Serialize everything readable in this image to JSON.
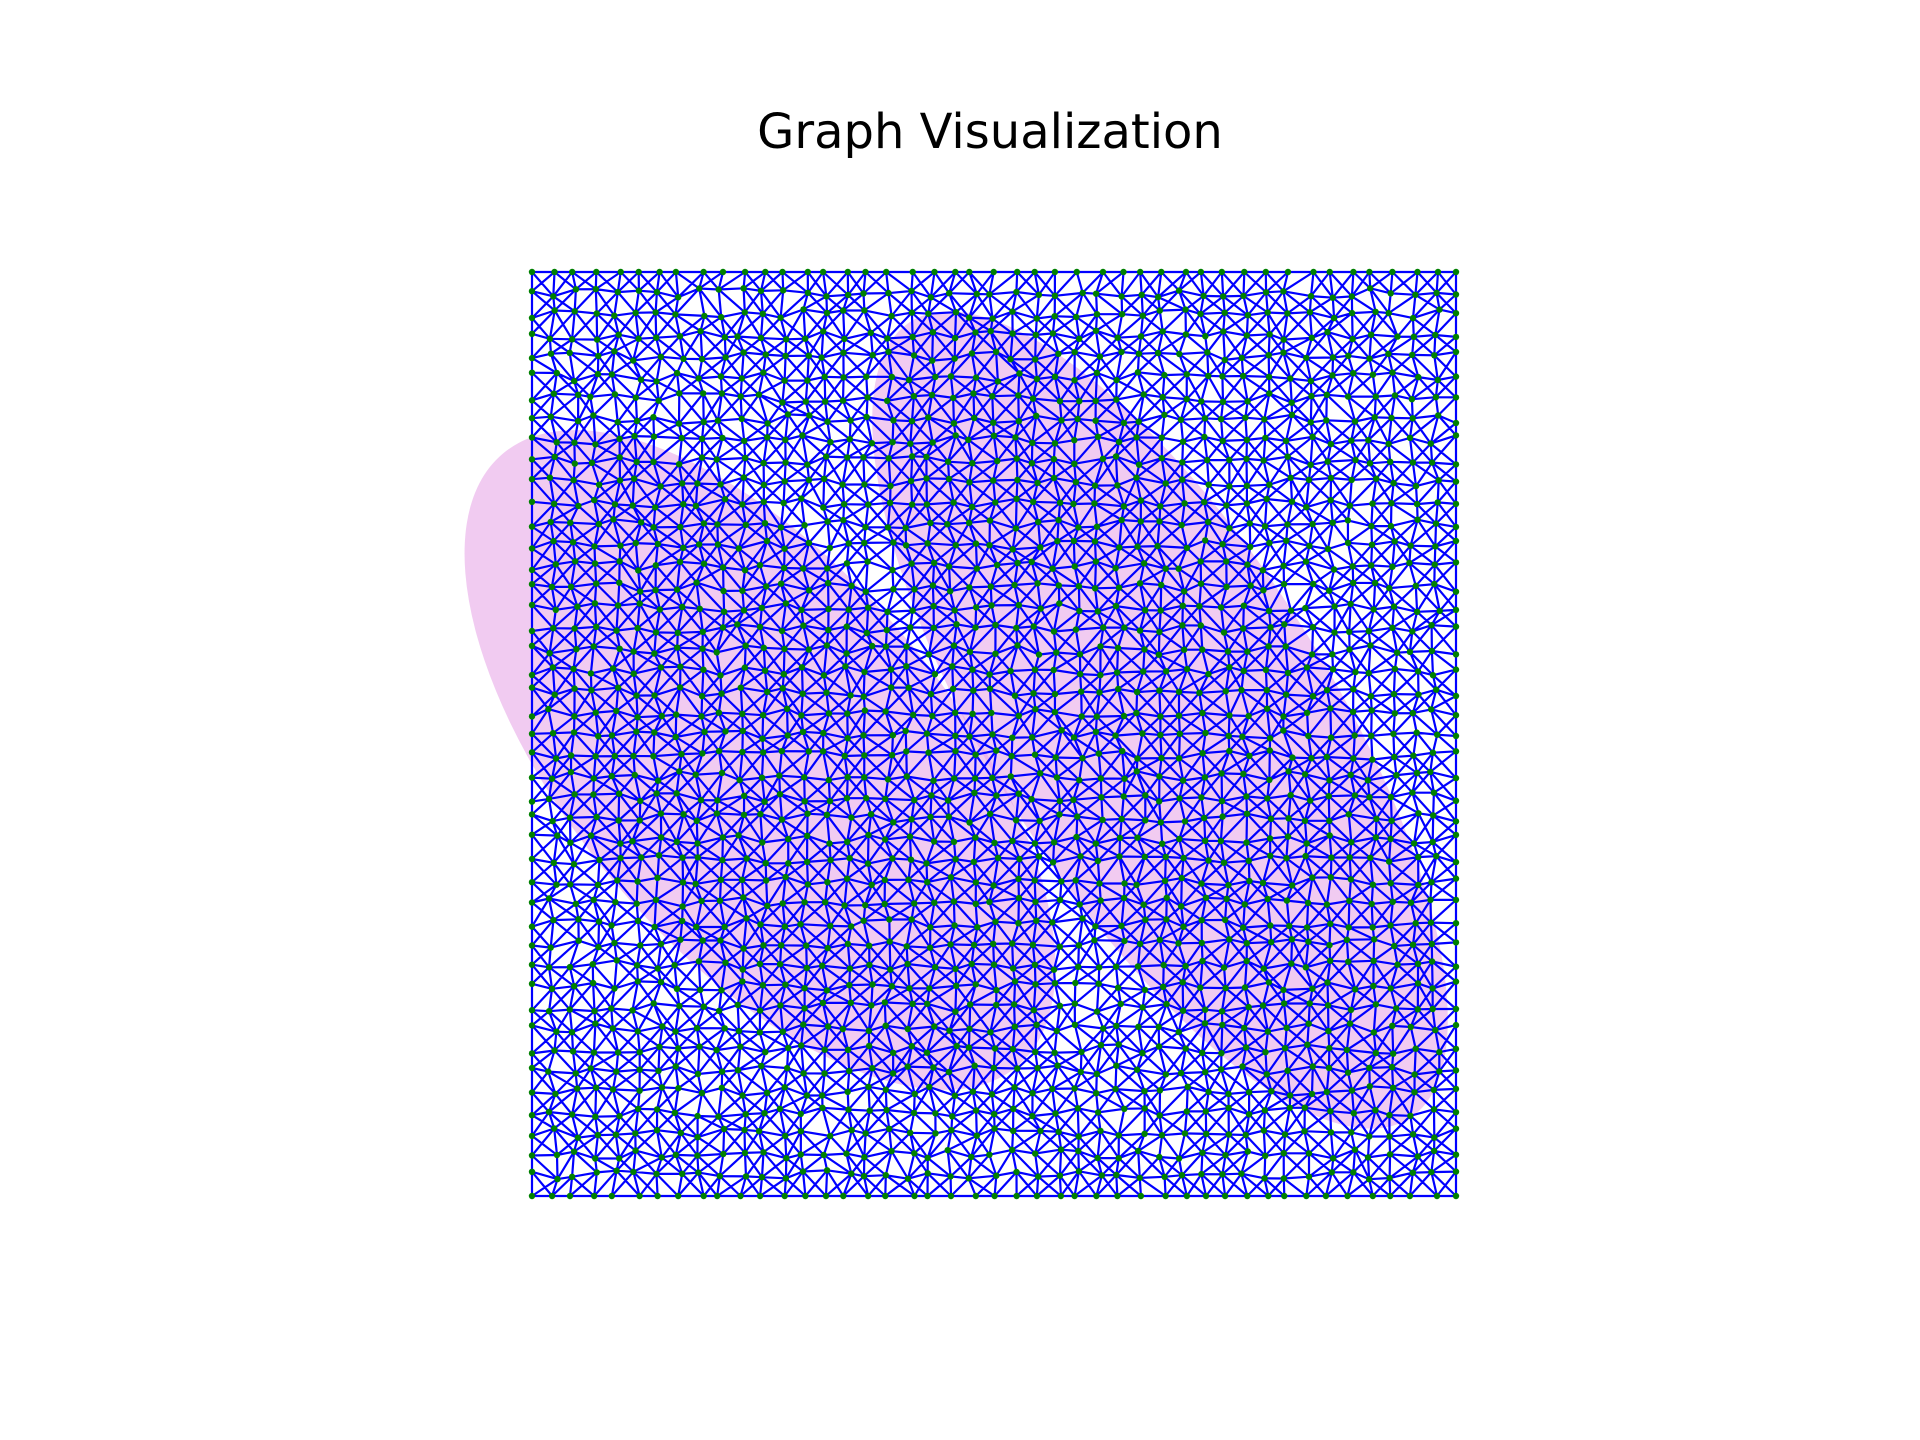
{
  "title": "Graph Visualization",
  "colors": {
    "background": "#ffffff",
    "edge": "#0000ff",
    "node": "#008000",
    "highlight": "#e6a0e6"
  },
  "graph": {
    "kind": "grid mesh with diagonal cross edges",
    "grid_columns": 45,
    "grid_rows": 45,
    "node_shape": "dot",
    "highlight_regions_description": "two translucent pink diagonal band-shaped regions under the mesh"
  }
}
